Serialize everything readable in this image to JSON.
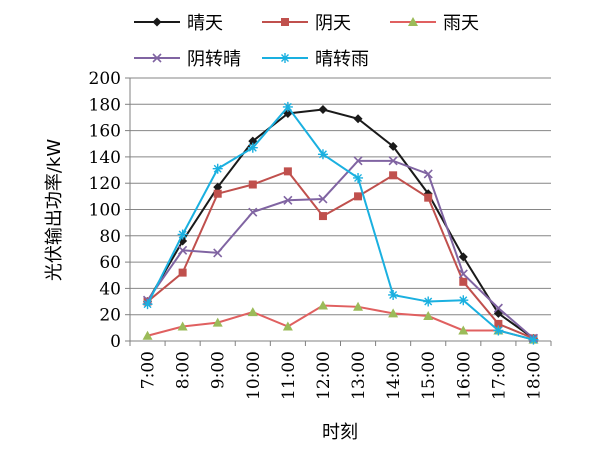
{
  "chart_data": {
    "type": "line",
    "title": "",
    "xlabel": "时刻",
    "ylabel": "光伏输出功率/kW",
    "ylim": [
      0,
      200
    ],
    "yticks": [
      "0",
      "20",
      "40",
      "60",
      "80",
      "100",
      "120",
      "140",
      "160",
      "180",
      "200"
    ],
    "categories": [
      "7:00",
      "8:00",
      "9:00",
      "10:00",
      "11:00",
      "12:00",
      "13:00",
      "14:00",
      "15:00",
      "16:00",
      "17:00",
      "18:00"
    ],
    "grid": "horizontal",
    "legend_position": "top",
    "series": [
      {
        "name": "晴天",
        "color": "#1a1a1a",
        "marker": "diamond",
        "values": [
          30,
          76,
          117,
          152,
          173,
          176,
          169,
          148,
          112,
          64,
          21,
          2
        ]
      },
      {
        "name": "阴天",
        "color": "#c0504d",
        "marker": "square",
        "values": [
          30,
          52,
          112,
          119,
          129,
          95,
          110,
          126,
          109,
          45,
          13,
          2
        ]
      },
      {
        "name": "雨天",
        "color": "#f08080",
        "line_color": "#e06060",
        "marker_color": "#9bbb59",
        "marker": "triangle",
        "values": [
          4,
          11,
          14,
          22,
          11,
          27,
          26,
          21,
          19,
          8,
          8,
          1
        ]
      },
      {
        "name": "阴转晴",
        "color": "#8064a2",
        "marker": "x",
        "values": [
          31,
          69,
          67,
          98,
          107,
          108,
          137,
          137,
          127,
          51,
          25,
          2
        ]
      },
      {
        "name": "晴转雨",
        "color": "#1ab0e0",
        "marker": "star",
        "values": [
          28,
          81,
          131,
          147,
          178,
          142,
          124,
          35,
          30,
          31,
          8,
          1
        ]
      }
    ]
  }
}
